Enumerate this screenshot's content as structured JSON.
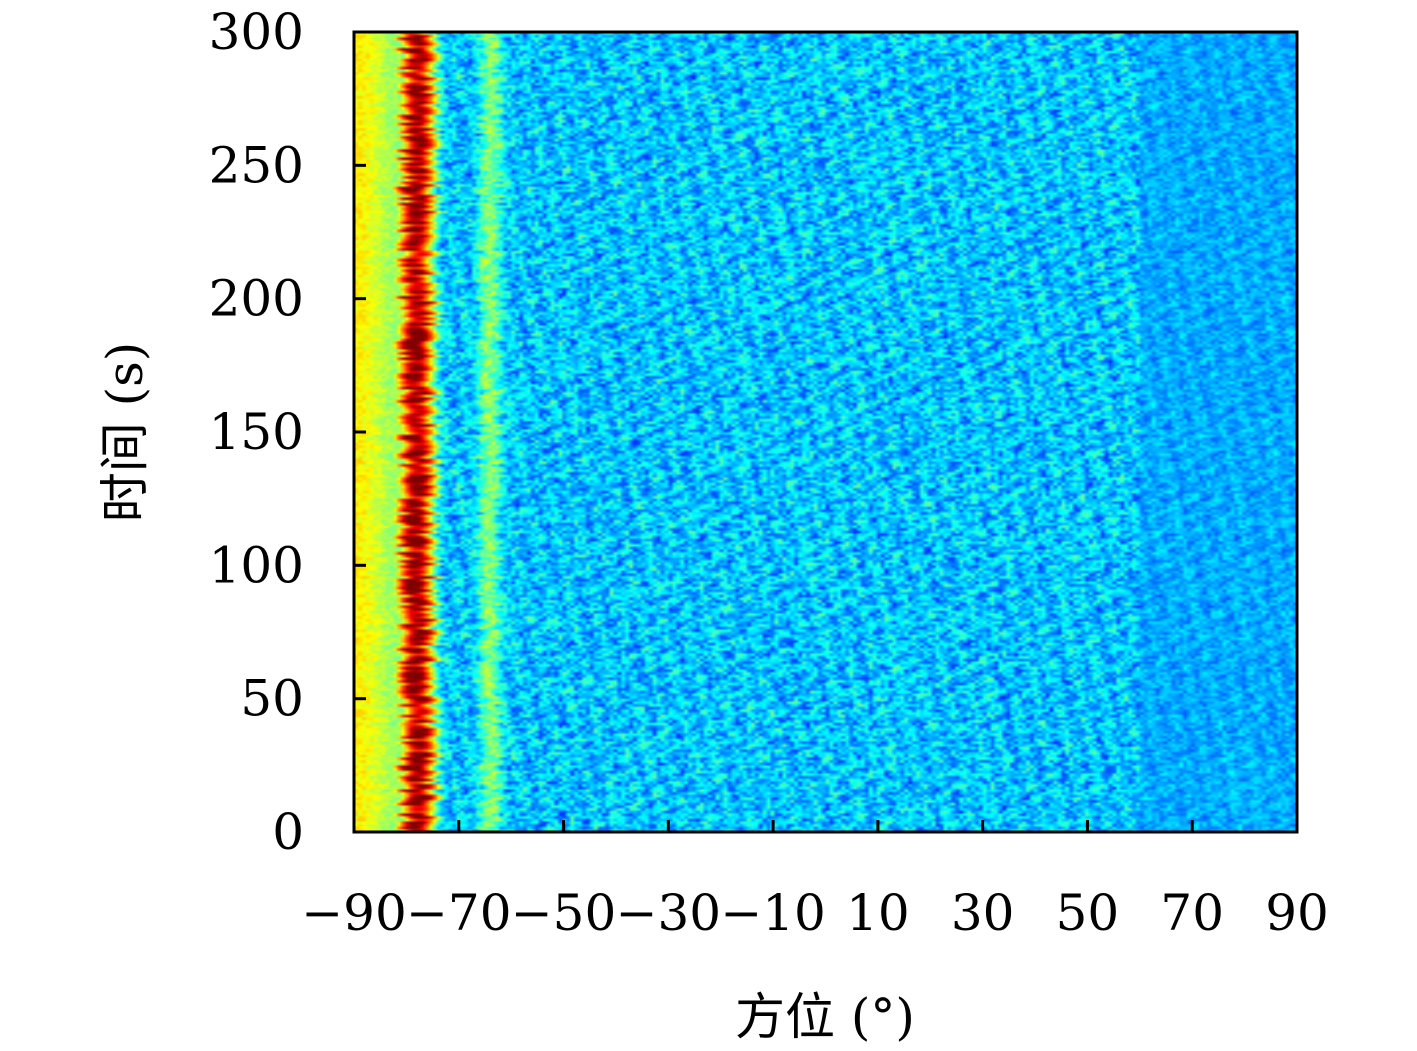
{
  "chart_data": {
    "type": "heatmap",
    "title": "",
    "xlabel": "方位 (°)",
    "ylabel": "时间 (s)",
    "xlim": [
      -90,
      90
    ],
    "ylim": [
      0,
      300
    ],
    "x_ticks": [
      -90,
      -70,
      -50,
      -30,
      -10,
      10,
      30,
      50,
      70,
      90
    ],
    "x_tick_labels": [
      "−90",
      "−70",
      "−50",
      "−30",
      "−10",
      "10",
      "30",
      "50",
      "70",
      "90"
    ],
    "y_ticks": [
      0,
      50,
      100,
      150,
      200,
      250,
      300
    ],
    "y_tick_labels": [
      "0",
      "50",
      "100",
      "150",
      "200",
      "250",
      "300"
    ],
    "colormap": "jet",
    "features": {
      "strong_track_azimuth": -78,
      "secondary_track_azimuth": -64,
      "background_level": "low"
    },
    "grid": false,
    "legend": "none"
  }
}
